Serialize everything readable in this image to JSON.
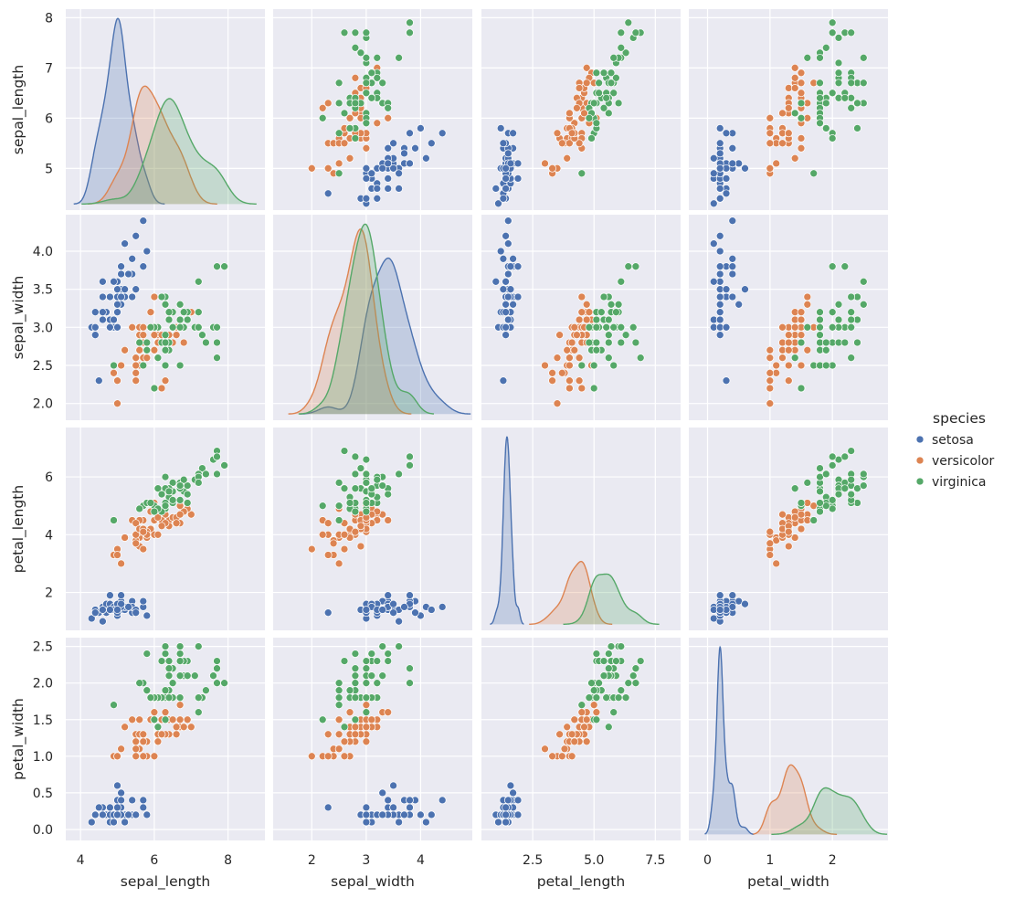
{
  "chart_data": {
    "type": "pairplot",
    "grid": true,
    "background": "#eaeaf2",
    "diagonal": "kde",
    "offdiagonal": "scatter",
    "variables": [
      {
        "name": "sepal_length",
        "xlim": [
          3.6,
          9.0
        ],
        "ylim": [
          4.17,
          8.17
        ],
        "xticks": [
          4,
          6,
          8
        ],
        "xtick_labels": [
          "4",
          "6",
          "8"
        ],
        "yticks": [
          5,
          6,
          7,
          8
        ],
        "ytick_labels": [
          "5",
          "6",
          "7",
          "8"
        ]
      },
      {
        "name": "sepal_width",
        "xlim": [
          1.29,
          4.95
        ],
        "ylim": [
          1.78,
          4.48
        ],
        "xticks": [
          2,
          3,
          4
        ],
        "xtick_labels": [
          "2",
          "3",
          "4"
        ],
        "yticks": [
          2.0,
          2.5,
          3.0,
          3.5,
          4.0
        ],
        "ytick_labels": [
          "2.0",
          "2.5",
          "3.0",
          "3.5",
          "4.0"
        ]
      },
      {
        "name": "petal_length",
        "xlim": [
          0.41,
          8.53
        ],
        "ylim": [
          0.69,
          7.71
        ],
        "xticks": [
          2.5,
          5.0,
          7.5
        ],
        "xtick_labels": [
          "2.5",
          "5.0",
          "7.5"
        ],
        "yticks": [
          2,
          4,
          6
        ],
        "ytick_labels": [
          "2",
          "4",
          "6"
        ]
      },
      {
        "name": "petal_width",
        "xlim": [
          -0.3,
          2.89
        ],
        "ylim": [
          -0.15,
          2.62
        ],
        "xticks": [
          0,
          1,
          2
        ],
        "xtick_labels": [
          "0",
          "1",
          "2"
        ],
        "yticks": [
          0.0,
          0.5,
          1.0,
          1.5,
          2.0,
          2.5
        ],
        "ytick_labels": [
          "0.0",
          "0.5",
          "1.0",
          "1.5",
          "2.0",
          "2.5"
        ]
      }
    ],
    "legend": {
      "title": "species",
      "placement": "right"
    },
    "series": [
      {
        "name": "setosa",
        "color": "#4c72b0",
        "rows": [
          [
            5.1,
            3.5,
            1.4,
            0.2
          ],
          [
            4.9,
            3.0,
            1.4,
            0.2
          ],
          [
            4.7,
            3.2,
            1.3,
            0.2
          ],
          [
            4.6,
            3.1,
            1.5,
            0.2
          ],
          [
            5.0,
            3.6,
            1.4,
            0.2
          ],
          [
            5.4,
            3.9,
            1.7,
            0.4
          ],
          [
            4.6,
            3.4,
            1.4,
            0.3
          ],
          [
            5.0,
            3.4,
            1.5,
            0.2
          ],
          [
            4.4,
            2.9,
            1.4,
            0.2
          ],
          [
            4.9,
            3.1,
            1.5,
            0.1
          ],
          [
            5.4,
            3.7,
            1.5,
            0.2
          ],
          [
            4.8,
            3.4,
            1.6,
            0.2
          ],
          [
            4.8,
            3.0,
            1.4,
            0.1
          ],
          [
            4.3,
            3.0,
            1.1,
            0.1
          ],
          [
            5.8,
            4.0,
            1.2,
            0.2
          ],
          [
            5.7,
            4.4,
            1.5,
            0.4
          ],
          [
            5.4,
            3.9,
            1.3,
            0.4
          ],
          [
            5.1,
            3.5,
            1.4,
            0.3
          ],
          [
            5.7,
            3.8,
            1.7,
            0.3
          ],
          [
            5.1,
            3.8,
            1.5,
            0.3
          ],
          [
            5.4,
            3.4,
            1.7,
            0.2
          ],
          [
            5.1,
            3.7,
            1.5,
            0.4
          ],
          [
            4.6,
            3.6,
            1.0,
            0.2
          ],
          [
            5.1,
            3.3,
            1.7,
            0.5
          ],
          [
            4.8,
            3.4,
            1.9,
            0.2
          ],
          [
            5.0,
            3.0,
            1.6,
            0.2
          ],
          [
            5.0,
            3.4,
            1.6,
            0.4
          ],
          [
            5.2,
            3.5,
            1.5,
            0.2
          ],
          [
            5.2,
            3.4,
            1.4,
            0.2
          ],
          [
            4.7,
            3.2,
            1.6,
            0.2
          ],
          [
            4.8,
            3.1,
            1.6,
            0.2
          ],
          [
            5.4,
            3.4,
            1.5,
            0.4
          ],
          [
            5.2,
            4.1,
            1.5,
            0.1
          ],
          [
            5.5,
            4.2,
            1.4,
            0.2
          ],
          [
            4.9,
            3.1,
            1.5,
            0.2
          ],
          [
            5.0,
            3.2,
            1.2,
            0.2
          ],
          [
            5.5,
            3.5,
            1.3,
            0.2
          ],
          [
            4.9,
            3.6,
            1.4,
            0.1
          ],
          [
            4.4,
            3.0,
            1.3,
            0.2
          ],
          [
            5.1,
            3.4,
            1.5,
            0.2
          ],
          [
            5.0,
            3.5,
            1.3,
            0.3
          ],
          [
            4.5,
            2.3,
            1.3,
            0.3
          ],
          [
            4.4,
            3.2,
            1.3,
            0.2
          ],
          [
            5.0,
            3.5,
            1.6,
            0.6
          ],
          [
            5.1,
            3.8,
            1.9,
            0.4
          ],
          [
            4.8,
            3.0,
            1.4,
            0.3
          ],
          [
            5.1,
            3.8,
            1.6,
            0.2
          ],
          [
            4.6,
            3.2,
            1.4,
            0.2
          ],
          [
            5.3,
            3.7,
            1.5,
            0.2
          ],
          [
            5.0,
            3.3,
            1.4,
            0.2
          ]
        ]
      },
      {
        "name": "versicolor",
        "color": "#dd8452",
        "rows": [
          [
            7.0,
            3.2,
            4.7,
            1.4
          ],
          [
            6.4,
            3.2,
            4.5,
            1.5
          ],
          [
            6.9,
            3.1,
            4.9,
            1.5
          ],
          [
            5.5,
            2.3,
            4.0,
            1.3
          ],
          [
            6.5,
            2.8,
            4.6,
            1.5
          ],
          [
            5.7,
            2.8,
            4.5,
            1.3
          ],
          [
            6.3,
            3.3,
            4.7,
            1.6
          ],
          [
            4.9,
            2.4,
            3.3,
            1.0
          ],
          [
            6.6,
            2.9,
            4.6,
            1.3
          ],
          [
            5.2,
            2.7,
            3.9,
            1.4
          ],
          [
            5.0,
            2.0,
            3.5,
            1.0
          ],
          [
            5.9,
            3.0,
            4.2,
            1.5
          ],
          [
            6.0,
            2.2,
            4.0,
            1.0
          ],
          [
            6.1,
            2.9,
            4.7,
            1.4
          ],
          [
            5.6,
            2.9,
            3.6,
            1.3
          ],
          [
            6.7,
            3.1,
            4.4,
            1.4
          ],
          [
            5.6,
            3.0,
            4.5,
            1.5
          ],
          [
            5.8,
            2.7,
            4.1,
            1.0
          ],
          [
            6.2,
            2.2,
            4.5,
            1.5
          ],
          [
            5.6,
            2.5,
            3.9,
            1.1
          ],
          [
            5.9,
            3.2,
            4.8,
            1.8
          ],
          [
            6.1,
            2.8,
            4.0,
            1.3
          ],
          [
            6.3,
            2.5,
            4.9,
            1.5
          ],
          [
            6.1,
            2.8,
            4.7,
            1.2
          ],
          [
            6.4,
            2.9,
            4.3,
            1.3
          ],
          [
            6.6,
            3.0,
            4.4,
            1.4
          ],
          [
            6.8,
            2.8,
            4.8,
            1.4
          ],
          [
            6.7,
            3.0,
            5.0,
            1.7
          ],
          [
            6.0,
            2.9,
            4.5,
            1.5
          ],
          [
            5.7,
            2.6,
            3.5,
            1.0
          ],
          [
            5.5,
            2.4,
            3.8,
            1.1
          ],
          [
            5.5,
            2.4,
            3.7,
            1.0
          ],
          [
            5.8,
            2.7,
            3.9,
            1.2
          ],
          [
            6.0,
            2.7,
            5.1,
            1.6
          ],
          [
            5.4,
            3.0,
            4.5,
            1.5
          ],
          [
            6.0,
            3.4,
            4.5,
            1.6
          ],
          [
            6.7,
            3.1,
            4.7,
            1.5
          ],
          [
            6.3,
            2.3,
            4.4,
            1.3
          ],
          [
            5.6,
            3.0,
            4.1,
            1.3
          ],
          [
            5.5,
            2.5,
            4.0,
            1.3
          ],
          [
            5.5,
            2.6,
            4.4,
            1.2
          ],
          [
            6.1,
            3.0,
            4.6,
            1.4
          ],
          [
            5.8,
            2.6,
            4.0,
            1.2
          ],
          [
            5.0,
            2.3,
            3.3,
            1.0
          ],
          [
            5.6,
            2.7,
            4.2,
            1.3
          ],
          [
            5.7,
            3.0,
            4.2,
            1.2
          ],
          [
            5.7,
            2.9,
            4.2,
            1.3
          ],
          [
            6.2,
            2.9,
            4.3,
            1.3
          ],
          [
            5.1,
            2.5,
            3.0,
            1.1
          ],
          [
            5.7,
            2.8,
            4.1,
            1.3
          ]
        ]
      },
      {
        "name": "virginica",
        "color": "#55a868",
        "rows": [
          [
            6.3,
            3.3,
            6.0,
            2.5
          ],
          [
            5.8,
            2.7,
            5.1,
            1.9
          ],
          [
            7.1,
            3.0,
            5.9,
            2.1
          ],
          [
            6.3,
            2.9,
            5.6,
            1.8
          ],
          [
            6.5,
            3.0,
            5.8,
            2.2
          ],
          [
            7.6,
            3.0,
            6.6,
            2.1
          ],
          [
            4.9,
            2.5,
            4.5,
            1.7
          ],
          [
            7.3,
            2.9,
            6.3,
            1.8
          ],
          [
            6.7,
            2.5,
            5.8,
            1.8
          ],
          [
            7.2,
            3.6,
            6.1,
            2.5
          ],
          [
            6.5,
            3.2,
            5.1,
            2.0
          ],
          [
            6.4,
            2.7,
            5.3,
            1.9
          ],
          [
            6.8,
            3.0,
            5.5,
            2.1
          ],
          [
            5.7,
            2.5,
            5.0,
            2.0
          ],
          [
            5.8,
            2.8,
            5.1,
            2.4
          ],
          [
            6.4,
            3.2,
            5.3,
            2.3
          ],
          [
            6.5,
            3.0,
            5.5,
            1.8
          ],
          [
            7.7,
            3.8,
            6.7,
            2.2
          ],
          [
            7.7,
            2.6,
            6.9,
            2.3
          ],
          [
            6.0,
            2.2,
            5.0,
            1.5
          ],
          [
            6.9,
            3.2,
            5.7,
            2.3
          ],
          [
            5.6,
            2.8,
            4.9,
            2.0
          ],
          [
            7.7,
            2.8,
            6.7,
            2.0
          ],
          [
            6.3,
            2.7,
            4.9,
            1.8
          ],
          [
            6.7,
            3.3,
            5.7,
            2.1
          ],
          [
            7.2,
            3.2,
            6.0,
            1.8
          ],
          [
            6.2,
            2.8,
            4.8,
            1.8
          ],
          [
            6.1,
            3.0,
            4.9,
            1.8
          ],
          [
            6.4,
            2.8,
            5.6,
            2.1
          ],
          [
            7.2,
            3.0,
            5.8,
            1.6
          ],
          [
            7.4,
            2.8,
            6.1,
            1.9
          ],
          [
            7.9,
            3.8,
            6.4,
            2.0
          ],
          [
            6.4,
            2.8,
            5.6,
            2.2
          ],
          [
            6.3,
            2.8,
            5.1,
            1.5
          ],
          [
            6.1,
            2.6,
            5.6,
            1.4
          ],
          [
            7.7,
            3.0,
            6.1,
            2.3
          ],
          [
            6.3,
            3.4,
            5.6,
            2.4
          ],
          [
            6.4,
            3.1,
            5.5,
            1.8
          ],
          [
            6.0,
            3.0,
            4.8,
            1.8
          ],
          [
            6.9,
            3.1,
            5.4,
            2.1
          ],
          [
            6.7,
            3.1,
            5.6,
            2.4
          ],
          [
            6.9,
            3.1,
            5.1,
            2.3
          ],
          [
            5.8,
            2.7,
            5.1,
            1.9
          ],
          [
            6.8,
            3.2,
            5.9,
            2.3
          ],
          [
            6.7,
            3.3,
            5.7,
            2.5
          ],
          [
            6.7,
            3.0,
            5.2,
            2.3
          ],
          [
            6.3,
            2.5,
            5.0,
            1.9
          ],
          [
            6.5,
            3.0,
            5.2,
            2.0
          ],
          [
            6.2,
            3.4,
            5.4,
            2.3
          ],
          [
            5.9,
            3.0,
            5.1,
            1.8
          ]
        ]
      }
    ]
  }
}
